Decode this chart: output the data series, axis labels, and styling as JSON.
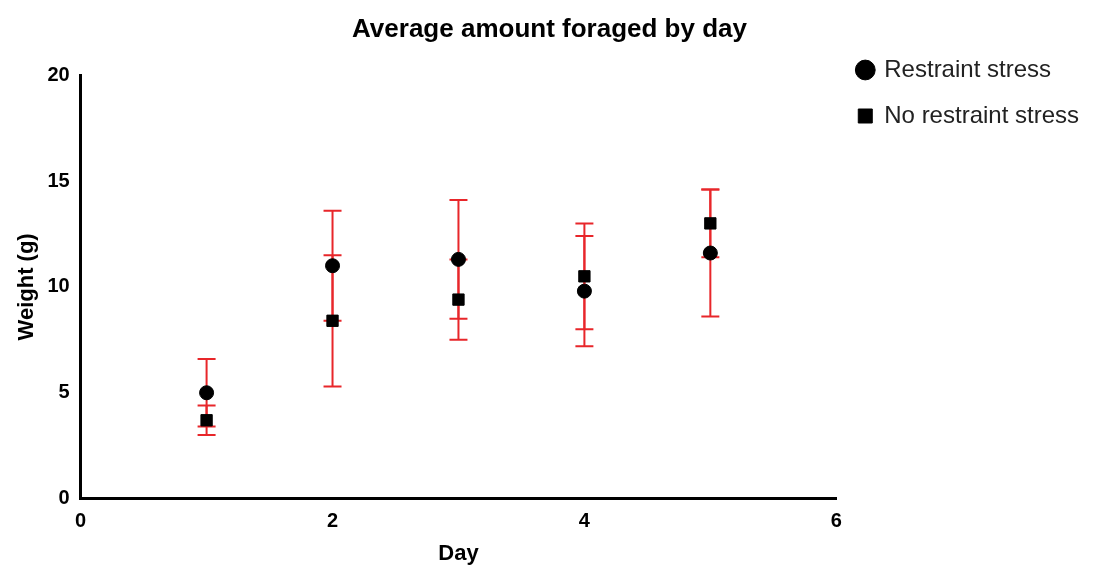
{
  "chart_data": {
    "type": "scatter",
    "title": "Average amount foraged by day",
    "xlabel": "Day",
    "ylabel": "Weight (g)",
    "x": [
      1,
      2,
      3,
      4,
      5
    ],
    "series": [
      {
        "name": "Restraint stress",
        "color": "#000000",
        "marker": "circle",
        "values": [
          5.0,
          11.0,
          11.3,
          9.8,
          11.6
        ],
        "errors": [
          1.6,
          2.6,
          2.8,
          2.6,
          3.0
        ]
      },
      {
        "name": "No restraint stress",
        "color": "#000000",
        "marker": "square",
        "values": [
          3.7,
          8.4,
          9.4,
          10.5,
          13.0
        ],
        "errors": [
          0.7,
          3.1,
          1.9,
          2.5,
          1.6
        ]
      }
    ],
    "xlim": [
      0,
      6
    ],
    "xticks": [
      0,
      2,
      4,
      6
    ],
    "ylim": [
      0,
      20
    ],
    "yticks": [
      0,
      5,
      10,
      15,
      20
    ],
    "grid": false,
    "legend": "top right"
  }
}
